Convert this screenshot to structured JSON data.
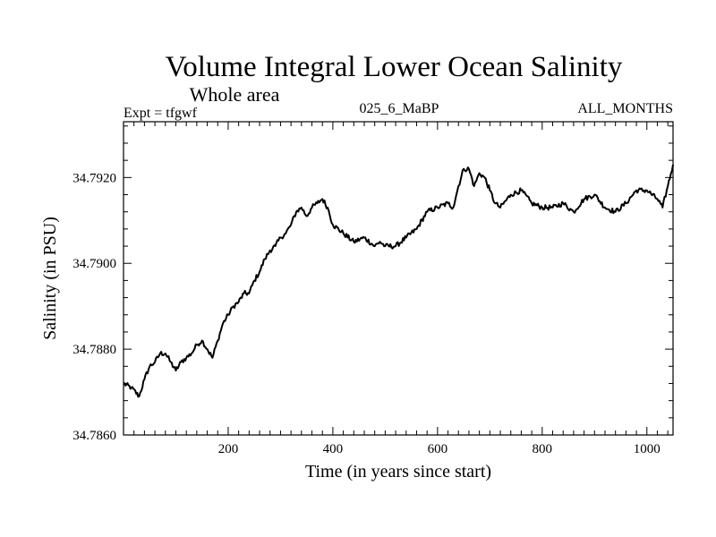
{
  "chart_data": {
    "type": "line",
    "title": "Volume Integral Lower Ocean Salinity",
    "subtitle": "Whole area",
    "header_left": "Expt = tfgwf",
    "header_center": "025_6_MaBP",
    "header_right": "ALL_MONTHS",
    "xlabel": "Time (in years since start)",
    "ylabel": "Salinity (in PSU)",
    "xlim": [
      0,
      1050
    ],
    "ylim": [
      34.786,
      34.7933
    ],
    "x_ticks": [
      200,
      400,
      600,
      800,
      1000
    ],
    "x_tick_labels": [
      "200",
      "400",
      "600",
      "800",
      "1000"
    ],
    "y_ticks": [
      34.786,
      34.788,
      34.79,
      34.792
    ],
    "y_tick_labels": [
      "34.7860",
      "34.7880",
      "34.7900",
      "34.7920"
    ],
    "series": [
      {
        "name": "Salinity",
        "color": "#000000",
        "x": [
          0,
          15,
          30,
          40,
          50,
          60,
          70,
          80,
          90,
          100,
          110,
          120,
          130,
          140,
          150,
          160,
          170,
          180,
          190,
          200,
          210,
          220,
          230,
          240,
          250,
          260,
          270,
          280,
          290,
          300,
          310,
          320,
          330,
          340,
          350,
          360,
          370,
          380,
          390,
          400,
          420,
          440,
          460,
          480,
          490,
          500,
          520,
          540,
          560,
          580,
          600,
          620,
          630,
          640,
          650,
          660,
          670,
          680,
          690,
          700,
          710,
          720,
          740,
          760,
          780,
          800,
          820,
          840,
          860,
          880,
          900,
          920,
          940,
          960,
          980,
          1000,
          1020,
          1030,
          1040,
          1050
        ],
        "values": [
          34.7872,
          34.7871,
          34.7869,
          34.7873,
          34.7876,
          34.7877,
          34.7879,
          34.7879,
          34.7877,
          34.7875,
          34.7877,
          34.7878,
          34.7879,
          34.7881,
          34.7882,
          34.788,
          34.7878,
          34.7882,
          34.7886,
          34.7888,
          34.789,
          34.7891,
          34.7893,
          34.7893,
          34.7896,
          34.7898,
          34.7901,
          34.7903,
          34.7904,
          34.7906,
          34.7907,
          34.7909,
          34.7912,
          34.7913,
          34.7911,
          34.7913,
          34.7914,
          34.7915,
          34.7913,
          34.7909,
          34.7907,
          34.7905,
          34.7906,
          34.7904,
          34.7905,
          34.7904,
          34.7904,
          34.7906,
          34.7908,
          34.7912,
          34.7913,
          34.7914,
          34.7913,
          34.7918,
          34.7922,
          34.7922,
          34.7918,
          34.7921,
          34.792,
          34.7917,
          34.7914,
          34.7913,
          34.7916,
          34.7917,
          34.7914,
          34.7913,
          34.7913,
          34.7914,
          34.7912,
          34.7915,
          34.7916,
          34.7913,
          34.7912,
          34.7914,
          34.7917,
          34.7917,
          34.7915,
          34.7913,
          34.7918,
          34.7923
        ]
      }
    ]
  }
}
